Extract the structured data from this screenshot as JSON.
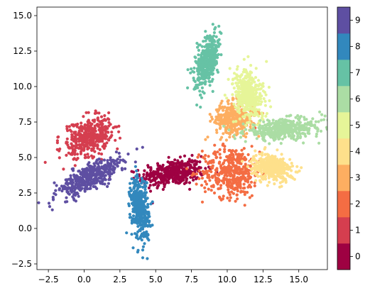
{
  "chart_data": {
    "type": "scatter",
    "title": "",
    "xlabel": "",
    "ylabel": "",
    "xlim": [
      -3.3,
      17.0
    ],
    "ylim": [
      -2.9,
      15.6
    ],
    "xticks": [
      -2.5,
      0.0,
      2.5,
      5.0,
      7.5,
      10.0,
      12.5,
      15.0
    ],
    "xtick_labels": [
      "−2.5",
      "0.0",
      "2.5",
      "5.0",
      "7.5",
      "10.0",
      "12.5",
      "15.0"
    ],
    "yticks": [
      -2.5,
      0.0,
      2.5,
      5.0,
      7.5,
      10.0,
      12.5,
      15.0
    ],
    "ytick_labels": [
      "−2.5",
      "0.0",
      "2.5",
      "5.0",
      "7.5",
      "10.0",
      "12.5",
      "15.0"
    ],
    "grid": false,
    "colormap": "Spectral",
    "colorbar": {
      "range": [
        -0.5,
        9.5
      ],
      "ticks": [
        0,
        1,
        2,
        3,
        4,
        5,
        6,
        7,
        8,
        9
      ],
      "tick_labels": [
        "0",
        "1",
        "2",
        "3",
        "4",
        "5",
        "6",
        "7",
        "8",
        "9"
      ],
      "colors": [
        "#9e0142",
        "#d53e4f",
        "#f46d43",
        "#fdae61",
        "#fee08b",
        "#e6f598",
        "#abdda4",
        "#66c2a5",
        "#3288bd",
        "#5e4fa2"
      ]
    },
    "clusters": [
      {
        "label": 0,
        "center": [
          6.2,
          3.9
        ],
        "spread": [
          1.1,
          0.45
        ],
        "angle": 8
      },
      {
        "label": 1,
        "center": [
          0.3,
          6.4
        ],
        "spread": [
          0.6,
          0.9
        ],
        "angle": -55
      },
      {
        "label": 2,
        "center": [
          10.3,
          4.0
        ],
        "spread": [
          1.0,
          0.9
        ],
        "angle": 0
      },
      {
        "label": 3,
        "center": [
          10.5,
          7.8
        ],
        "spread": [
          0.7,
          0.55
        ],
        "angle": 10
      },
      {
        "label": 4,
        "center": [
          13.1,
          4.3
        ],
        "spread": [
          0.7,
          0.45
        ],
        "angle": -15
      },
      {
        "label": 5,
        "center": [
          11.5,
          9.4
        ],
        "spread": [
          0.5,
          0.9
        ],
        "angle": 15
      },
      {
        "label": 6,
        "center": [
          14.0,
          7.0
        ],
        "spread": [
          1.4,
          0.35
        ],
        "angle": 5
      },
      {
        "label": 7,
        "center": [
          8.6,
          11.7
        ],
        "spread": [
          0.35,
          0.9
        ],
        "angle": -15
      },
      {
        "label": 8,
        "center": [
          3.9,
          1.4
        ],
        "spread": [
          0.3,
          1.1
        ],
        "angle": 5
      },
      {
        "label": 9,
        "center": [
          0.4,
          3.6
        ],
        "spread": [
          1.3,
          0.4
        ],
        "angle": 28
      }
    ]
  }
}
